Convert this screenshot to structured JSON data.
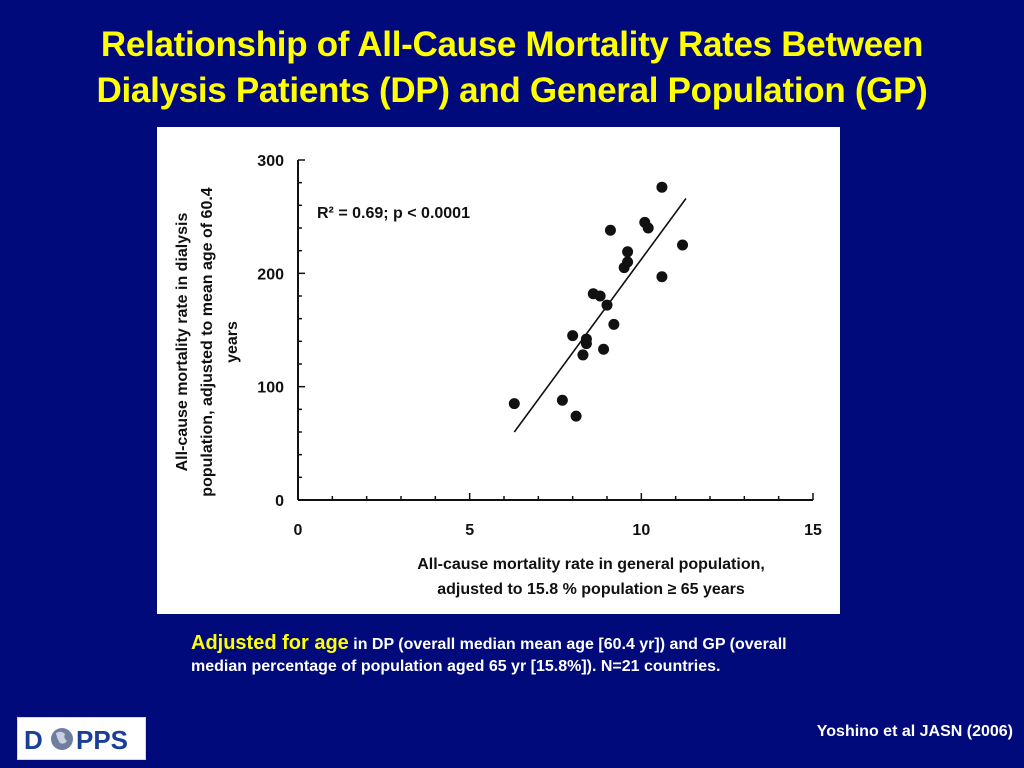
{
  "slide": {
    "title_line1": "Relationship of All-Cause Mortality Rates Between",
    "title_line2": "Dialysis Patients (DP) and General Population (GP)",
    "caption_lead": "Adjusted for age",
    "caption_rest": " in DP (overall median mean age [60.4 yr]) and GP (overall median percentage of population aged 65 yr [15.8%]). N=21 countries.",
    "citation": "Yoshino et al JASN (2006)",
    "logo_text": "D",
    "logo_text2": "PPS"
  },
  "colors": {
    "background": "#000a7a",
    "title": "#ffff00",
    "caption_lead": "#ffff00",
    "text": "#ffffff",
    "logo_blue": "#1a3f99"
  },
  "chart_data": {
    "type": "scatter",
    "xlabel_line1": "All-cause mortality rate in general population,",
    "xlabel_line2": "adjusted to 15.8 % population ≥ 65 years",
    "ylabel_line1": "All-cause mortality rate in dialysis",
    "ylabel_line2": "population, adjusted to mean age of 60.4",
    "ylabel_line3": "years",
    "xlim": [
      0,
      15
    ],
    "ylim": [
      0,
      300
    ],
    "xticks": [
      0,
      5,
      10,
      15
    ],
    "yticks": [
      0,
      100,
      200,
      300
    ],
    "annotation": "R² = 0.69; p < 0.0001",
    "grid": false,
    "points": [
      {
        "x": 6.3,
        "y": 85
      },
      {
        "x": 7.7,
        "y": 88
      },
      {
        "x": 8.1,
        "y": 74
      },
      {
        "x": 8.0,
        "y": 145
      },
      {
        "x": 8.3,
        "y": 128
      },
      {
        "x": 8.4,
        "y": 138
      },
      {
        "x": 8.4,
        "y": 142
      },
      {
        "x": 8.6,
        "y": 182
      },
      {
        "x": 8.8,
        "y": 180
      },
      {
        "x": 8.9,
        "y": 133
      },
      {
        "x": 9.0,
        "y": 172
      },
      {
        "x": 9.2,
        "y": 155
      },
      {
        "x": 9.1,
        "y": 238
      },
      {
        "x": 9.5,
        "y": 205
      },
      {
        "x": 9.6,
        "y": 210
      },
      {
        "x": 9.6,
        "y": 219
      },
      {
        "x": 10.1,
        "y": 245
      },
      {
        "x": 10.2,
        "y": 240
      },
      {
        "x": 10.6,
        "y": 276
      },
      {
        "x": 10.6,
        "y": 197
      },
      {
        "x": 11.2,
        "y": 225
      }
    ],
    "fit_line": [
      {
        "x": 6.3,
        "y": 60
      },
      {
        "x": 11.3,
        "y": 266
      }
    ]
  }
}
